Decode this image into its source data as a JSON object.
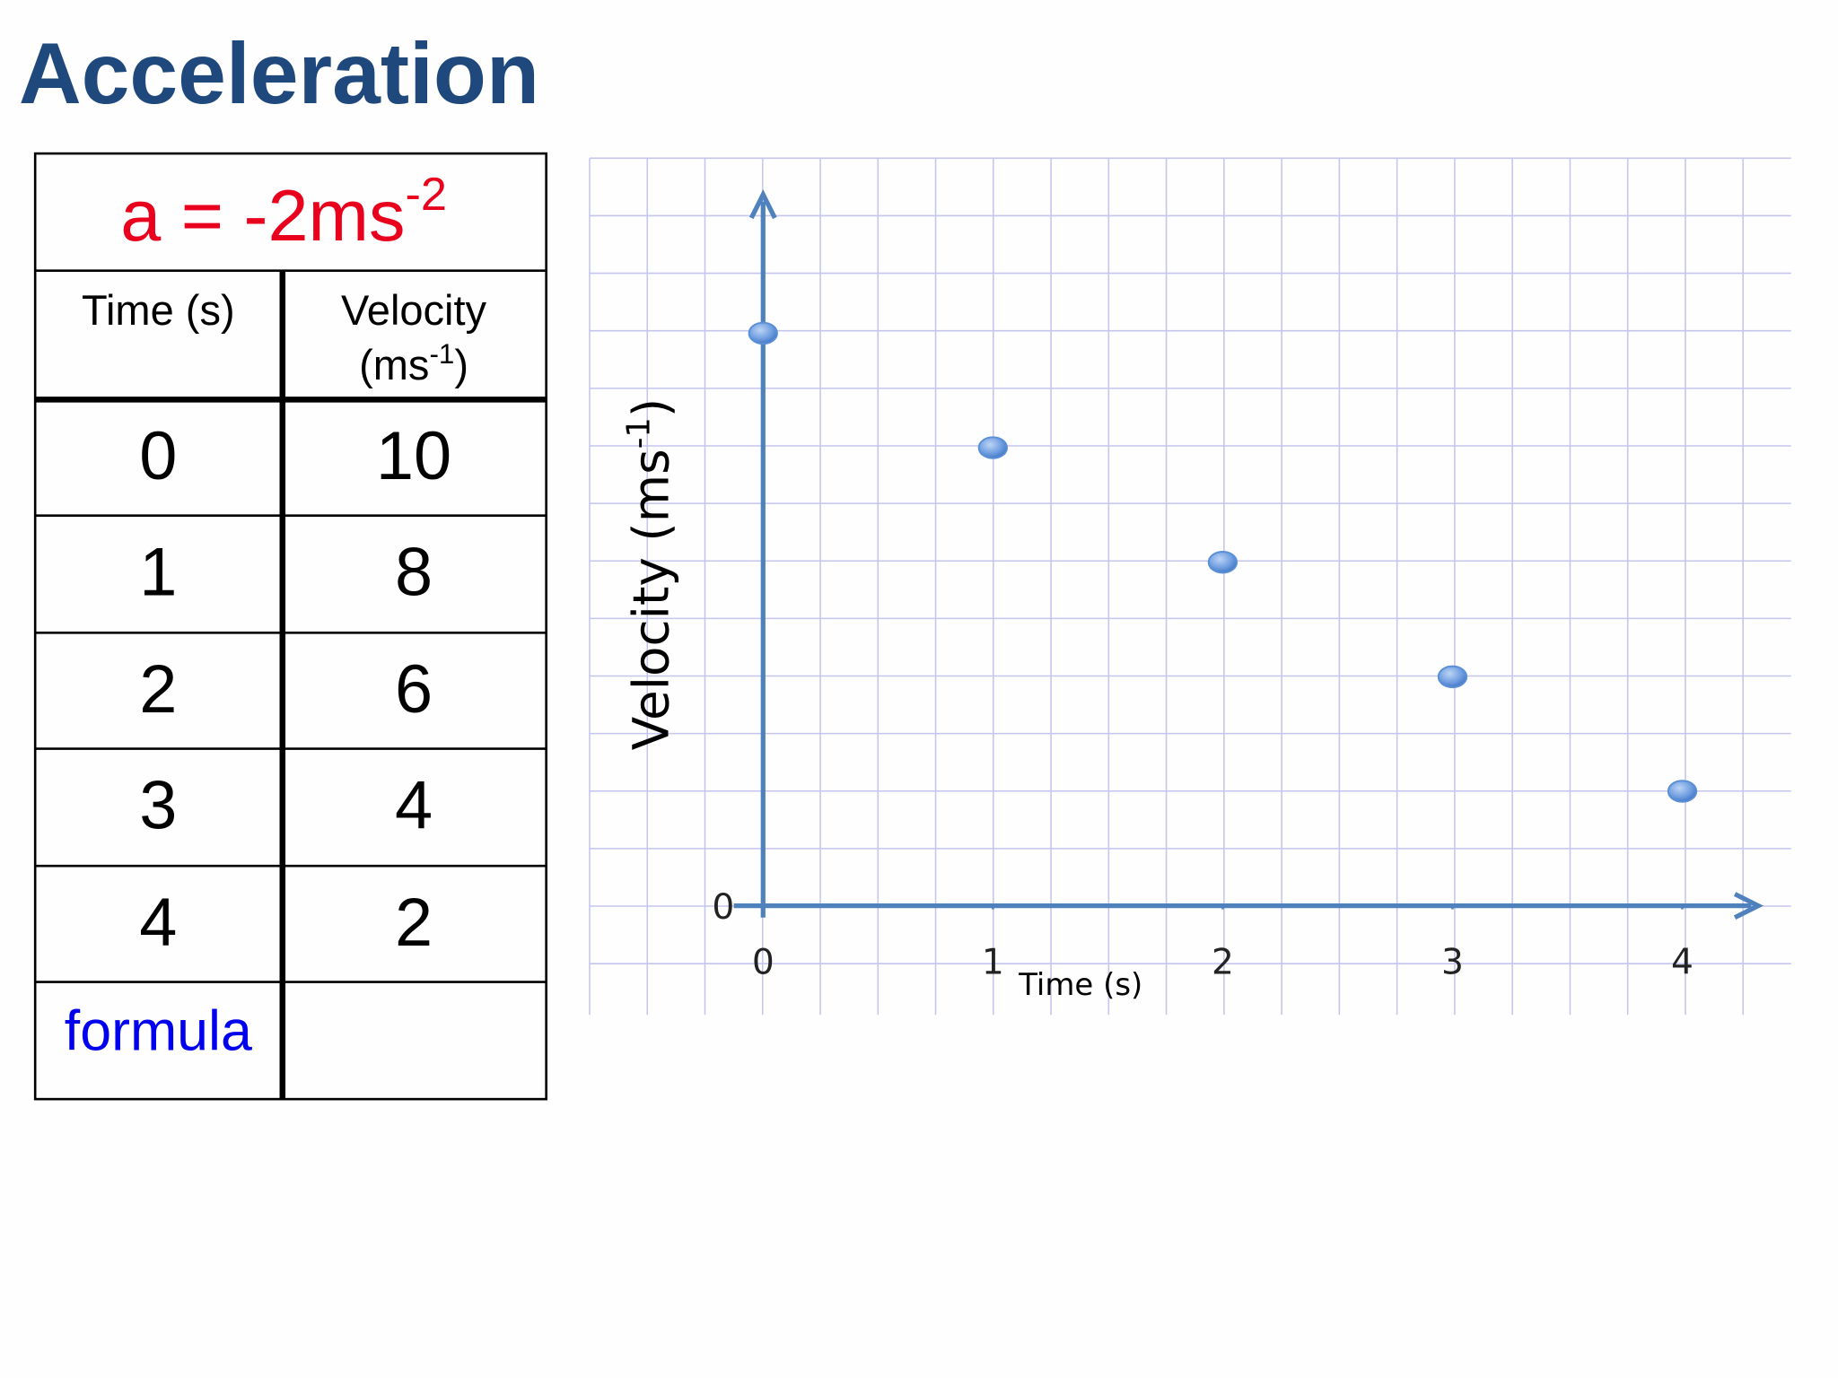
{
  "title": "Acceleration",
  "table": {
    "formula": {
      "text": "a = -2ms",
      "sup": "-2"
    },
    "header": {
      "time": "Time (s)",
      "velocity": "Velocity",
      "unit": "(ms",
      "unit_sup": "-1",
      "unit_close": ")"
    },
    "rows": [
      [
        0,
        10
      ],
      [
        1,
        8
      ],
      [
        2,
        6
      ],
      [
        3,
        4
      ],
      [
        4,
        2
      ]
    ],
    "footer": "formula"
  },
  "chart_data": {
    "type": "scatter",
    "x_label": "Time (s)",
    "y_label": {
      "text": "Velocity (ms",
      "sup": "-1",
      "close": ")"
    },
    "x": [
      0,
      1,
      2,
      3,
      4
    ],
    "series": [
      {
        "values": [
          10,
          8,
          6,
          4,
          2
        ],
        "color": "#5b8fd6"
      }
    ],
    "xlim": [
      0,
      4.3
    ],
    "ylim": [
      0,
      12.3
    ],
    "xticks": [
      0,
      1,
      2,
      3,
      4
    ],
    "yticks": [
      0
    ],
    "axis_color": "#4f81bd",
    "grid_color": "#c5c5ee"
  }
}
